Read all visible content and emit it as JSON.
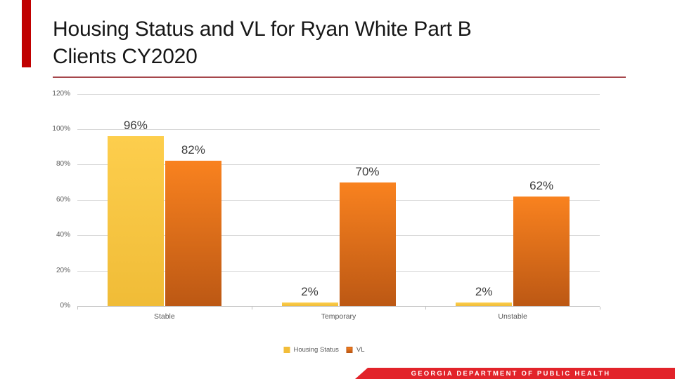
{
  "slide": {
    "title_lines": [
      "Housing Status and VL for Ryan White Part B",
      "Clients CY2020"
    ],
    "footer": "GEORGIA DEPARTMENT OF PUBLIC HEALTH"
  },
  "chart_data": {
    "type": "bar",
    "title": "Housing Status and VL for Ryan White Part B Clients CY2020",
    "categories": [
      "Stable",
      "Temporary",
      "Unstable"
    ],
    "series": [
      {
        "name": "Housing Status",
        "values": [
          96,
          2,
          2
        ],
        "fill_top": "#FDCE4D",
        "fill_bottom": "#F0BC37",
        "swatch": "#F2BD39"
      },
      {
        "name": "VL",
        "values": [
          82,
          70,
          62
        ],
        "fill_top": "#F9821F",
        "fill_bottom": "#BC5814",
        "swatch": "#E8761B"
      }
    ],
    "data_label_suffix": "%",
    "y_ticks": [
      120,
      100,
      80,
      60,
      40,
      20,
      0
    ],
    "y_tick_suffix": "%",
    "ylim": [
      0,
      120
    ],
    "grid": true,
    "legend_position": "bottom",
    "xlabel": "",
    "ylabel": ""
  },
  "colors": {
    "accent_bar": "#C00000",
    "title_underline": "#A6474C",
    "banner": "#E2232A",
    "gridline": "#D9D9D9",
    "axis_text": "#595959",
    "data_label_text": "#3B3B3B"
  }
}
